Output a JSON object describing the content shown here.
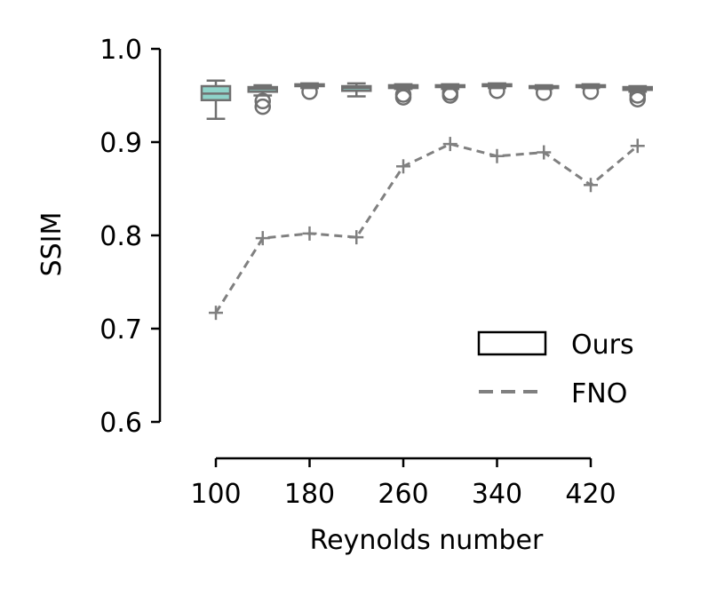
{
  "chart_data": {
    "type": "box+line",
    "xlabel": "Reynolds number",
    "ylabel": "SSIM",
    "ylim": [
      0.6,
      1.0
    ],
    "xlim": [
      100,
      460
    ],
    "x_ticks": [
      100,
      180,
      260,
      340,
      420
    ],
    "y_ticks": [
      0.6,
      0.7,
      0.8,
      0.9,
      1.0
    ],
    "y_tick_labels": [
      "0.6",
      "0.7",
      "0.8",
      "0.9",
      "1.0"
    ],
    "x_tick_labels": [
      "100",
      "180",
      "260",
      "340",
      "420"
    ],
    "legend": {
      "position": "lower-right",
      "entries": [
        {
          "label": "Ours",
          "style": "box"
        },
        {
          "label": "FNO",
          "style": "dashed-line"
        }
      ]
    },
    "grid": false,
    "series": [
      {
        "name": "Ours",
        "kind": "box",
        "color": "#8fd3c9",
        "edge_color": "#707070",
        "boxes": [
          {
            "x": 100,
            "whislo": 0.925,
            "q1": 0.945,
            "med": 0.952,
            "q3": 0.96,
            "whishi": 0.966,
            "fliers": []
          },
          {
            "x": 140,
            "whislo": 0.95,
            "q1": 0.954,
            "med": 0.957,
            "q3": 0.959,
            "whishi": 0.961,
            "fliers": [
              0.944,
              0.938
            ]
          },
          {
            "x": 180,
            "whislo": 0.958,
            "q1": 0.96,
            "med": 0.961,
            "q3": 0.962,
            "whishi": 0.963,
            "fliers": [
              0.954
            ]
          },
          {
            "x": 220,
            "whislo": 0.949,
            "q1": 0.955,
            "med": 0.958,
            "q3": 0.96,
            "whishi": 0.963,
            "fliers": []
          },
          {
            "x": 260,
            "whislo": 0.957,
            "q1": 0.958,
            "med": 0.96,
            "q3": 0.961,
            "whishi": 0.962,
            "fliers": [
              0.951,
              0.948
            ]
          },
          {
            "x": 300,
            "whislo": 0.957,
            "q1": 0.959,
            "med": 0.96,
            "q3": 0.961,
            "whishi": 0.962,
            "fliers": [
              0.953,
              0.95
            ]
          },
          {
            "x": 340,
            "whislo": 0.958,
            "q1": 0.96,
            "med": 0.961,
            "q3": 0.962,
            "whishi": 0.963,
            "fliers": [
              0.955
            ]
          },
          {
            "x": 380,
            "whislo": 0.957,
            "q1": 0.958,
            "med": 0.959,
            "q3": 0.96,
            "whishi": 0.961,
            "fliers": [
              0.953
            ]
          },
          {
            "x": 420,
            "whislo": 0.958,
            "q1": 0.959,
            "med": 0.96,
            "q3": 0.961,
            "whishi": 0.962,
            "fliers": [
              0.954
            ]
          },
          {
            "x": 460,
            "whislo": 0.954,
            "q1": 0.956,
            "med": 0.958,
            "q3": 0.959,
            "whishi": 0.96,
            "fliers": [
              0.95,
              0.946
            ]
          }
        ]
      },
      {
        "name": "FNO",
        "kind": "line",
        "color": "#808080",
        "linestyle": "dashed",
        "marker": "+",
        "x": [
          100,
          140,
          180,
          220,
          260,
          300,
          340,
          380,
          420,
          460
        ],
        "y": [
          0.717,
          0.797,
          0.802,
          0.798,
          0.874,
          0.898,
          0.885,
          0.889,
          0.854,
          0.896
        ]
      }
    ]
  }
}
